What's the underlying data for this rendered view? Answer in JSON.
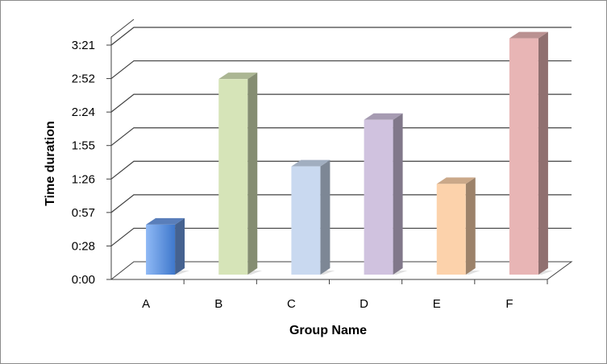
{
  "chart_data": {
    "type": "bar",
    "style": "3d-column",
    "title": "",
    "xlabel": "Group Name",
    "ylabel": "Time duration",
    "categories": [
      "A",
      "B",
      "C",
      "D",
      "E",
      "F"
    ],
    "values_seconds": [
      45,
      170,
      95,
      135,
      80,
      205
    ],
    "values": [
      "0:45",
      "2:50",
      "1:35",
      "2:15",
      "1:20",
      "3:25"
    ],
    "y_ticks": [
      "0:00",
      "0:28",
      "0:57",
      "1:26",
      "1:55",
      "2:24",
      "2:52",
      "3:21"
    ],
    "y_tick_seconds": [
      0,
      28.75,
      57.5,
      86.25,
      115,
      143.75,
      172.5,
      201.25
    ],
    "ylim": [
      0,
      201.25
    ],
    "grid": true,
    "legend": "none",
    "colors": [
      "#6f9ee8",
      "#d6e4b8",
      "#c9d9f0",
      "#d0c2df",
      "#fcd2ab",
      "#e8b5b5"
    ]
  }
}
